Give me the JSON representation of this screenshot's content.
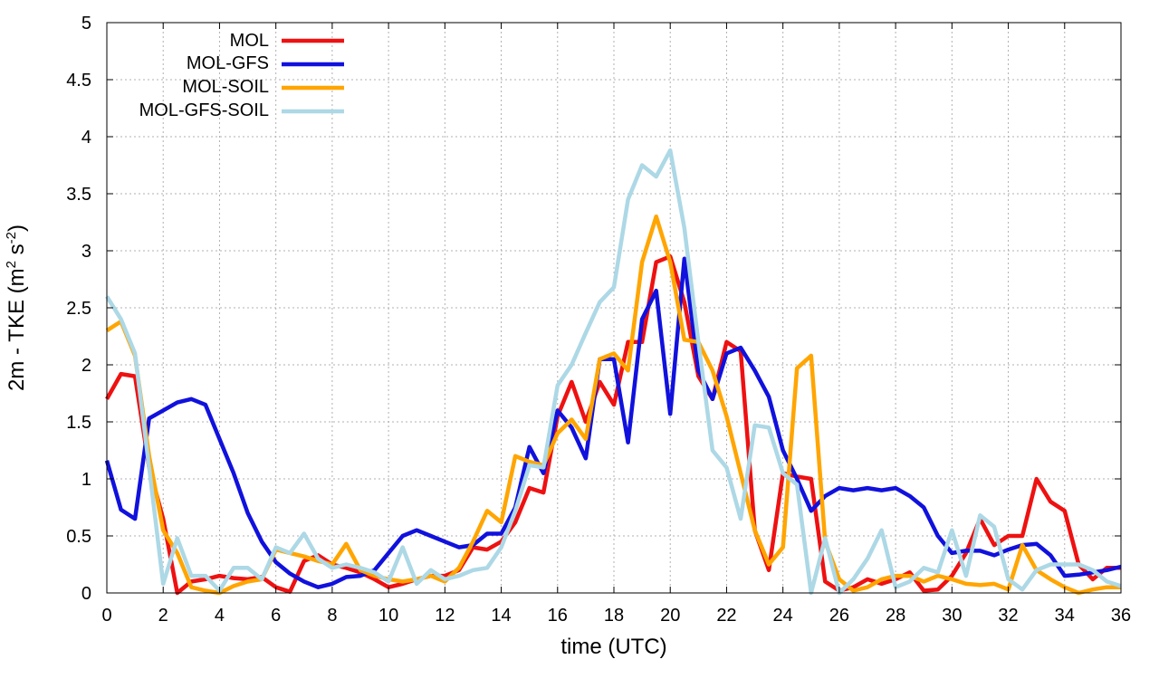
{
  "chart_data": {
    "type": "line",
    "title": "",
    "xlabel": "time (UTC)",
    "ylabel": {
      "base": "2m - TKE (m",
      "sup1": "2",
      "mid": " s",
      "sup2": "-2",
      "end": ")"
    },
    "xlim": [
      0,
      36
    ],
    "ylim": [
      0,
      5
    ],
    "xticks": [
      0,
      2,
      4,
      6,
      8,
      10,
      12,
      14,
      16,
      18,
      20,
      22,
      24,
      26,
      28,
      30,
      32,
      34,
      36
    ],
    "yticks": [
      0,
      0.5,
      1,
      1.5,
      2,
      2.5,
      3,
      3.5,
      4,
      4.5,
      5
    ],
    "ytick_labels": [
      "0",
      "0.5",
      "1",
      "1.5",
      "2",
      "2.5",
      "3",
      "3.5",
      "4",
      "4.5",
      "5"
    ],
    "grid": true,
    "legend_position": "top-left",
    "x": [
      0,
      0.5,
      1,
      1.5,
      2,
      2.5,
      3,
      3.5,
      4,
      4.5,
      5,
      5.5,
      6,
      6.5,
      7,
      7.5,
      8,
      8.5,
      9,
      9.5,
      10,
      10.5,
      11,
      11.5,
      12,
      12.5,
      13,
      13.5,
      14,
      14.5,
      15,
      15.5,
      16,
      16.5,
      17,
      17.5,
      18,
      18.5,
      19,
      19.5,
      20,
      20.5,
      21,
      21.5,
      22,
      22.5,
      23,
      23.5,
      24,
      24.5,
      25,
      25.5,
      26,
      26.5,
      27,
      27.5,
      28,
      28.5,
      29,
      29.5,
      30,
      30.5,
      31,
      31.5,
      32,
      32.5,
      33,
      33.5,
      34,
      34.5,
      35,
      35.5,
      36
    ],
    "series": [
      {
        "name": "MOL",
        "color": "#ee1111",
        "values": [
          1.7,
          1.92,
          1.9,
          1.1,
          0.65,
          0.0,
          0.1,
          0.12,
          0.15,
          0.13,
          0.12,
          0.14,
          0.05,
          0.01,
          0.28,
          0.33,
          0.25,
          0.22,
          0.18,
          0.12,
          0.05,
          0.08,
          0.12,
          0.15,
          0.15,
          0.2,
          0.4,
          0.38,
          0.45,
          0.62,
          0.92,
          0.88,
          1.55,
          1.85,
          1.5,
          1.85,
          1.65,
          2.2,
          2.2,
          2.9,
          2.95,
          2.55,
          1.9,
          1.7,
          2.2,
          2.12,
          0.55,
          0.2,
          1.05,
          1.02,
          1.0,
          0.1,
          0.02,
          0.05,
          0.12,
          0.08,
          0.12,
          0.18,
          0.02,
          0.03,
          0.15,
          0.35,
          0.65,
          0.42,
          0.5,
          0.5,
          1.0,
          0.8,
          0.72,
          0.25,
          0.12,
          0.22,
          0.22
        ]
      },
      {
        "name": "MOL-GFS",
        "color": "#1111dd",
        "values": [
          1.16,
          0.73,
          0.65,
          1.53,
          1.6,
          1.67,
          1.7,
          1.65,
          1.35,
          1.05,
          0.7,
          0.45,
          0.27,
          0.17,
          0.1,
          0.05,
          0.08,
          0.14,
          0.15,
          0.2,
          0.35,
          0.5,
          0.55,
          0.5,
          0.45,
          0.4,
          0.42,
          0.52,
          0.52,
          0.75,
          1.28,
          1.05,
          1.6,
          1.45,
          1.18,
          2.05,
          2.05,
          1.32,
          2.4,
          2.65,
          1.57,
          2.93,
          1.95,
          1.7,
          2.1,
          2.15,
          1.95,
          1.72,
          1.25,
          1.0,
          0.72,
          0.85,
          0.92,
          0.9,
          0.92,
          0.9,
          0.92,
          0.85,
          0.75,
          0.5,
          0.35,
          0.37,
          0.37,
          0.33,
          0.38,
          0.42,
          0.43,
          0.33,
          0.15,
          0.16,
          0.18,
          0.2,
          0.23
        ]
      },
      {
        "name": "MOL-SOIL",
        "color": "#ffa500",
        "values": [
          2.3,
          2.38,
          2.08,
          1.2,
          0.55,
          0.35,
          0.05,
          0.02,
          0.0,
          0.06,
          0.1,
          0.12,
          0.38,
          0.35,
          0.32,
          0.28,
          0.25,
          0.43,
          0.2,
          0.15,
          0.12,
          0.1,
          0.12,
          0.15,
          0.1,
          0.22,
          0.45,
          0.72,
          0.62,
          1.2,
          1.15,
          1.12,
          1.4,
          1.52,
          1.35,
          2.05,
          2.1,
          1.95,
          2.9,
          3.3,
          2.9,
          2.22,
          2.2,
          1.95,
          1.55,
          1.05,
          0.55,
          0.25,
          0.4,
          1.97,
          2.08,
          0.45,
          0.12,
          0.02,
          0.05,
          0.12,
          0.15,
          0.15,
          0.1,
          0.15,
          0.12,
          0.08,
          0.07,
          0.08,
          0.03,
          0.42,
          0.2,
          0.12,
          0.05,
          0.0,
          0.03,
          0.05,
          0.05
        ]
      },
      {
        "name": "MOL-GFS-SOIL",
        "color": "#add8e6",
        "values": [
          2.6,
          2.4,
          2.1,
          1.1,
          0.08,
          0.48,
          0.15,
          0.15,
          0.02,
          0.22,
          0.22,
          0.12,
          0.4,
          0.35,
          0.52,
          0.3,
          0.22,
          0.25,
          0.22,
          0.18,
          0.1,
          0.4,
          0.08,
          0.2,
          0.12,
          0.15,
          0.2,
          0.22,
          0.4,
          0.72,
          1.12,
          1.1,
          1.82,
          2.0,
          2.28,
          2.55,
          2.68,
          3.45,
          3.75,
          3.65,
          3.88,
          3.2,
          2.2,
          1.25,
          1.1,
          0.65,
          1.47,
          1.45,
          1.05,
          0.95,
          0.0,
          0.48,
          0.0,
          0.12,
          0.3,
          0.55,
          0.05,
          0.1,
          0.22,
          0.18,
          0.55,
          0.15,
          0.68,
          0.58,
          0.12,
          0.03,
          0.2,
          0.25,
          0.25,
          0.25,
          0.2,
          0.1,
          0.06
        ]
      }
    ]
  }
}
